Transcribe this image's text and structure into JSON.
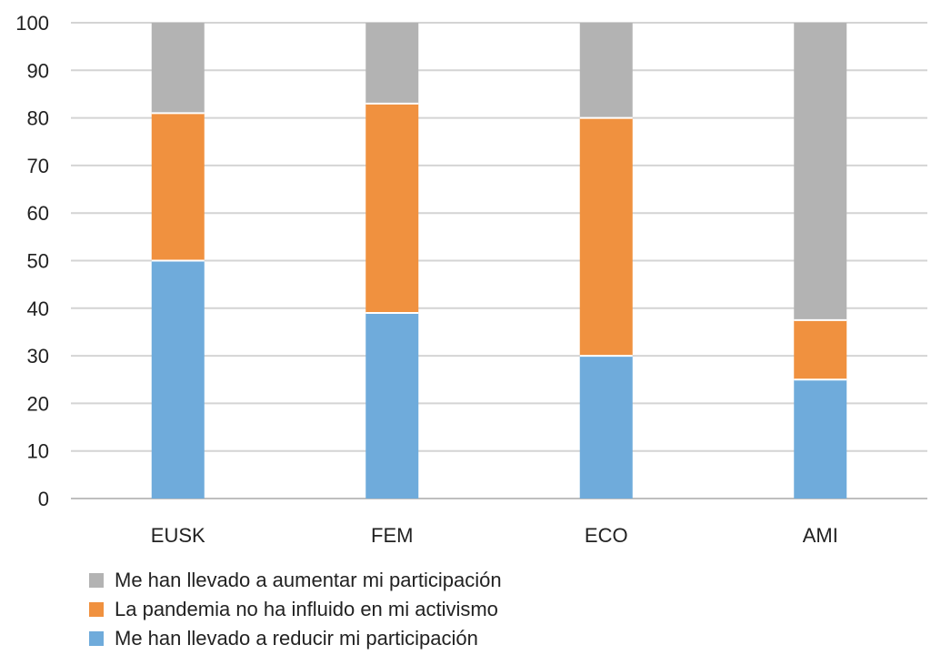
{
  "chart_data": {
    "type": "bar",
    "stacked": true,
    "categories": [
      "EUSK",
      "FEM",
      "ECO",
      "AMI"
    ],
    "series": [
      {
        "name": "Me han llevado a reducir mi participación",
        "color": "#6fabdb",
        "values": [
          50,
          39,
          30,
          25
        ]
      },
      {
        "name": "La pandemia no ha influido en mi activismo",
        "color": "#f0913f",
        "values": [
          31,
          44,
          50,
          12.5
        ]
      },
      {
        "name": "Me han llevado a aumentar mi participación",
        "color": "#b3b3b3",
        "values": [
          19,
          17,
          20,
          62.5
        ]
      }
    ],
    "ylim": [
      0,
      100
    ],
    "yticks": [
      0,
      10,
      20,
      30,
      40,
      50,
      60,
      70,
      80,
      90,
      100
    ],
    "grid": true,
    "legend_position": "bottom-left",
    "legend_order": [
      2,
      1,
      0
    ]
  }
}
